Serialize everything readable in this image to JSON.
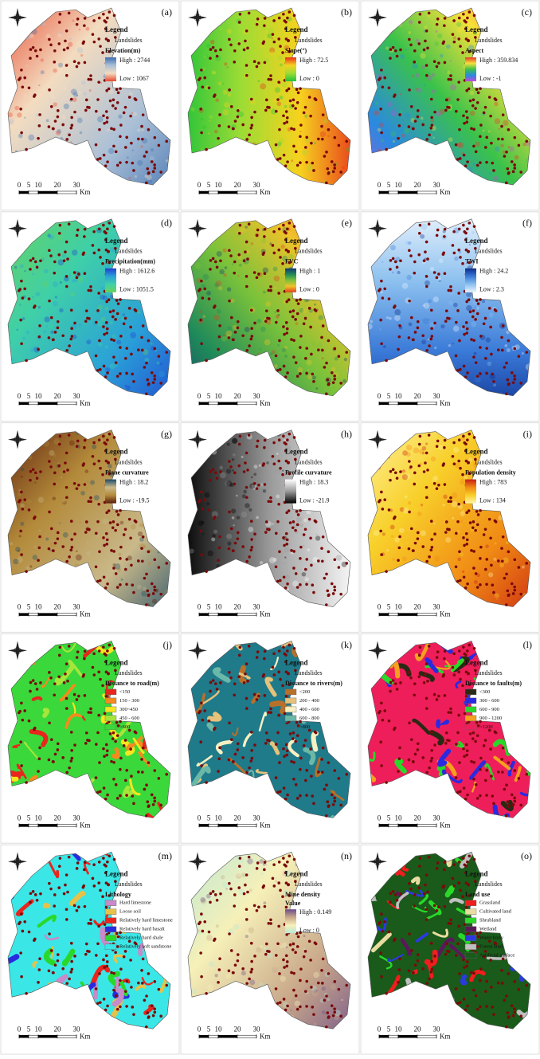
{
  "scale_bar": {
    "ticks": [
      0,
      5,
      10,
      20,
      30
    ],
    "unit": "Km"
  },
  "panels": [
    {
      "label": "(a)",
      "legend_title": "Legend",
      "point_label": "Landslides",
      "layer": "Elevation(m)",
      "high": "High : 2744",
      "low": "Low : 1067",
      "ramp": [
        "#3d6fb0",
        "#a9bfd6",
        "#f3dcc0",
        "#e8472e"
      ]
    },
    {
      "label": "(b)",
      "legend_title": "Legend",
      "point_label": "Landslides",
      "layer": "Slope(°)",
      "high": "High : 72.5",
      "low": "Low : 0",
      "ramp": [
        "#e8321c",
        "#f6d21e",
        "#9bdc35",
        "#22c23a"
      ]
    },
    {
      "label": "(c)",
      "legend_title": "Legend",
      "point_label": "Landslides",
      "layer": "Aspect",
      "high": "High : 359.834",
      "low": "Low : -1",
      "ramp": [
        "#e53a2a",
        "#f6e13a",
        "#3ac24a",
        "#2a8ae0",
        "#c24ad8"
      ]
    },
    {
      "label": "(d)",
      "legend_title": "Legend",
      "point_label": "Landslides",
      "layer": "Precipitation(mm)",
      "high": "High : 1612.6",
      "low": "Low : 1051.5",
      "ramp": [
        "#1f3fd0",
        "#2aa0d8",
        "#3fd0a8",
        "#6ad25a"
      ]
    },
    {
      "label": "(e)",
      "legend_title": "Legend",
      "point_label": "Landslides",
      "layer": "FVC",
      "high": "High : 1",
      "low": "Low : 0",
      "ramp": [
        "#14386e",
        "#1f8a5a",
        "#7ac23a",
        "#f0c22a",
        "#e0401f"
      ]
    },
    {
      "label": "(f)",
      "legend_title": "Legend",
      "point_label": "Landslides",
      "layer": "TWI",
      "high": "High : 24.2",
      "low": "Low : 2.3",
      "ramp": [
        "#0b2a8a",
        "#3a7ad8",
        "#8cc0ef",
        "#eaf4fc"
      ]
    },
    {
      "label": "(g)",
      "legend_title": "Legend",
      "point_label": "Landslides",
      "layer": "Plane curvature",
      "high": "High : 18.2",
      "low": "Low : -19.5",
      "ramp": [
        "#1b4a6a",
        "#c9b98a",
        "#b38a3a",
        "#5a1a0a"
      ]
    },
    {
      "label": "(h)",
      "legend_title": "Legend",
      "point_label": "Landslides",
      "layer": "Profile curvature",
      "high": "High : 18.3",
      "low": "Low : -21.9",
      "ramp": [
        "#ffffff",
        "#9a9a9a",
        "#000000"
      ]
    },
    {
      "label": "(i)",
      "legend_title": "Legend",
      "point_label": "Landslides",
      "layer": "Population density",
      "high": "High : 783",
      "low": "Low : 134",
      "ramp": [
        "#c81e14",
        "#f08a14",
        "#f8d02a",
        "#fff6a8"
      ]
    },
    {
      "label": "(j)",
      "legend_title": "Legend",
      "point_label": "Landslides",
      "layer": "Distance to road(m)",
      "classes": [
        {
          "label": "<150",
          "color": "#e8261e"
        },
        {
          "label": "150 - 300",
          "color": "#f58a1e"
        },
        {
          "label": "300~450",
          "color": "#f5e61e"
        },
        {
          "label": "450 - 600",
          "color": "#a6e63a"
        },
        {
          "label": ">600",
          "color": "#3ad83a"
        }
      ]
    },
    {
      "label": "(k)",
      "legend_title": "Legend",
      "point_label": "Landslides",
      "layer": "Distance to rivers(m)",
      "classes": [
        {
          "label": "<200",
          "color": "#b8702a"
        },
        {
          "label": "200 - 400",
          "color": "#e6c27a"
        },
        {
          "label": "400 - 600",
          "color": "#f7f0c2"
        },
        {
          "label": "600 - 800",
          "color": "#6ab8a8"
        },
        {
          "label": ">800",
          "color": "#1f7a8a"
        }
      ]
    },
    {
      "label": "(l)",
      "legend_title": "Legend",
      "point_label": "Landslides",
      "layer": "Distance to faults(m)",
      "classes": [
        {
          "label": "<300",
          "color": "#2a2a14"
        },
        {
          "label": "300 - 600",
          "color": "#2a2ae0"
        },
        {
          "label": "600 - 900",
          "color": "#2ad82a"
        },
        {
          "label": "900 - 1200",
          "color": "#f5a01e"
        },
        {
          "label": ">1200",
          "color": "#ee1e5a"
        }
      ]
    },
    {
      "label": "(m)",
      "legend_title": "Legend",
      "point_label": "Landslides",
      "layer": "Lithology",
      "classes": [
        {
          "label": "Hard limestone",
          "color": "#c88ac8"
        },
        {
          "label": "Loose soil",
          "color": "#e6c24a"
        },
        {
          "label": "Relatively hard limestone",
          "color": "#e8261e"
        },
        {
          "label": "Relatively hard basalt",
          "color": "#2a2ae0"
        },
        {
          "label": "Relatively hard shale",
          "color": "#2ad82a"
        },
        {
          "label": "Relatively soft sandstone",
          "color": "#3ae6e6"
        }
      ]
    },
    {
      "label": "(n)",
      "legend_title": "Legend",
      "point_label": "Landslides",
      "layer": "Mine density",
      "sublayer": "Value",
      "high": "High : 0.149",
      "low": "Low : 0",
      "ramp": [
        "#6a4a8a",
        "#c9a88a",
        "#f6f0b8",
        "#b8e8d8"
      ]
    },
    {
      "label": "(o)",
      "legend_title": "Legend",
      "point_label": "Landslides",
      "layer": "Land use",
      "classes": [
        {
          "label": "Grassland",
          "color": "#f01e1e"
        },
        {
          "label": "Cultivated land",
          "color": "#e8dca0"
        },
        {
          "label": "Shrubland",
          "color": "#2ad82a"
        },
        {
          "label": "Wetland",
          "color": "#5a1a5a"
        },
        {
          "label": "Water body",
          "color": "#2a3ae0"
        },
        {
          "label": "Forest land",
          "color": "#c0c0c0"
        },
        {
          "label": "Artificial surface",
          "color": "#1a5a1a"
        }
      ]
    }
  ]
}
